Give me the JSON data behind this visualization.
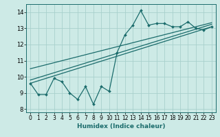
{
  "title": "",
  "xlabel": "Humidex (Indice chaleur)",
  "bg_color": "#cdeae6",
  "grid_color": "#a8d0cc",
  "line_color": "#1a6b6b",
  "x_data": [
    0,
    1,
    2,
    3,
    4,
    5,
    6,
    7,
    8,
    9,
    10,
    11,
    12,
    13,
    14,
    15,
    16,
    17,
    18,
    19,
    20,
    21,
    22,
    23
  ],
  "y_main": [
    9.6,
    8.9,
    8.9,
    9.9,
    9.7,
    9.0,
    8.6,
    9.4,
    8.3,
    9.4,
    9.1,
    11.5,
    12.6,
    13.2,
    14.1,
    13.2,
    13.3,
    13.3,
    13.1,
    13.1,
    13.4,
    13.0,
    12.9,
    13.1
  ],
  "trend1_x": [
    0,
    23
  ],
  "trend1_y": [
    9.6,
    13.1
  ],
  "trend2_x": [
    0,
    23
  ],
  "trend2_y": [
    10.5,
    13.35
  ],
  "trend3_x": [
    0,
    23
  ],
  "trend3_y": [
    9.8,
    13.25
  ],
  "ylim": [
    7.8,
    14.5
  ],
  "xlim": [
    -0.5,
    23.5
  ],
  "yticks": [
    8,
    9,
    10,
    11,
    12,
    13,
    14
  ],
  "xticks": [
    0,
    1,
    2,
    3,
    4,
    5,
    6,
    7,
    8,
    9,
    10,
    11,
    12,
    13,
    14,
    15,
    16,
    17,
    18,
    19,
    20,
    21,
    22,
    23
  ],
  "tick_fontsize": 5.5,
  "xlabel_fontsize": 6.5
}
